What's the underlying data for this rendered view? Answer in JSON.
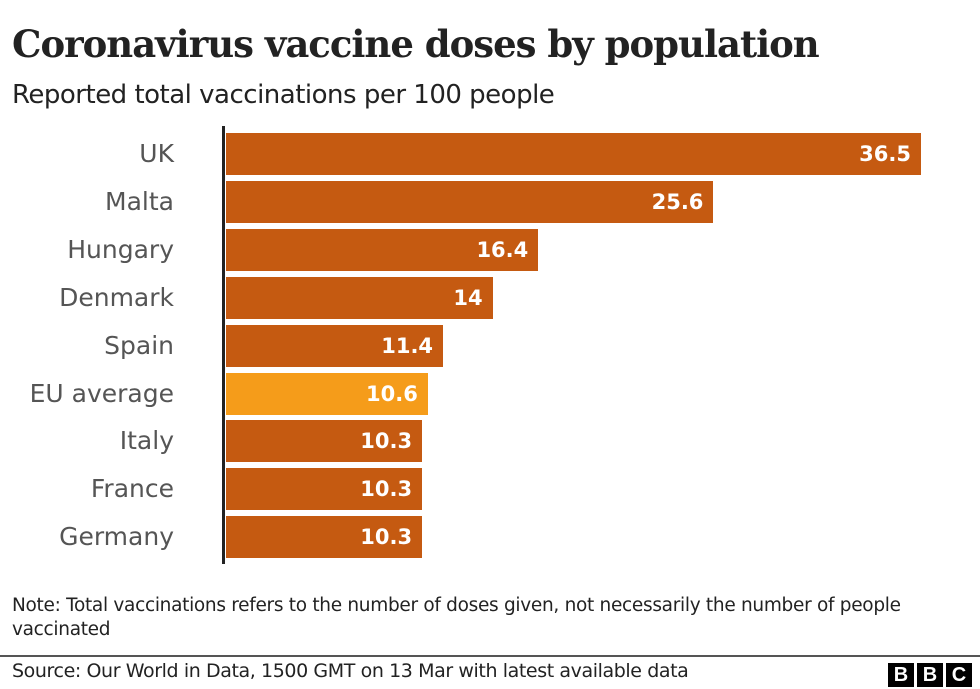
{
  "header": {
    "title": "Coronavirus vaccine doses by population",
    "subtitle": "Reported total vaccinations per 100 people"
  },
  "colors": {
    "bar": "#c55a11",
    "highlight": "#f59c1a",
    "axis": "#222222"
  },
  "chart_data": {
    "type": "bar",
    "orientation": "horizontal",
    "title": "Coronavirus vaccine doses by population",
    "subtitle": "Reported total vaccinations per 100 people",
    "xlabel": "",
    "ylabel": "",
    "categories": [
      "UK",
      "Malta",
      "Hungary",
      "Denmark",
      "Spain",
      "EU average",
      "Italy",
      "France",
      "Germany"
    ],
    "values": [
      36.5,
      25.6,
      16.4,
      14,
      11.4,
      10.6,
      10.3,
      10.3,
      10.3
    ],
    "value_labels": [
      "36.5",
      "25.6",
      "16.4",
      "14",
      "11.4",
      "10.6",
      "10.3",
      "10.3",
      "10.3"
    ],
    "highlighted": [
      "EU average"
    ],
    "xlim": [
      0,
      36.5
    ],
    "grid": false,
    "legend": null
  },
  "footer": {
    "note": "Note: Total vaccinations refers to the number of doses given, not necessarily the number of people vaccinated",
    "source": "Source: Our World in Data, 1500 GMT on 13 Mar with latest available data",
    "logo": [
      "B",
      "B",
      "C"
    ]
  }
}
